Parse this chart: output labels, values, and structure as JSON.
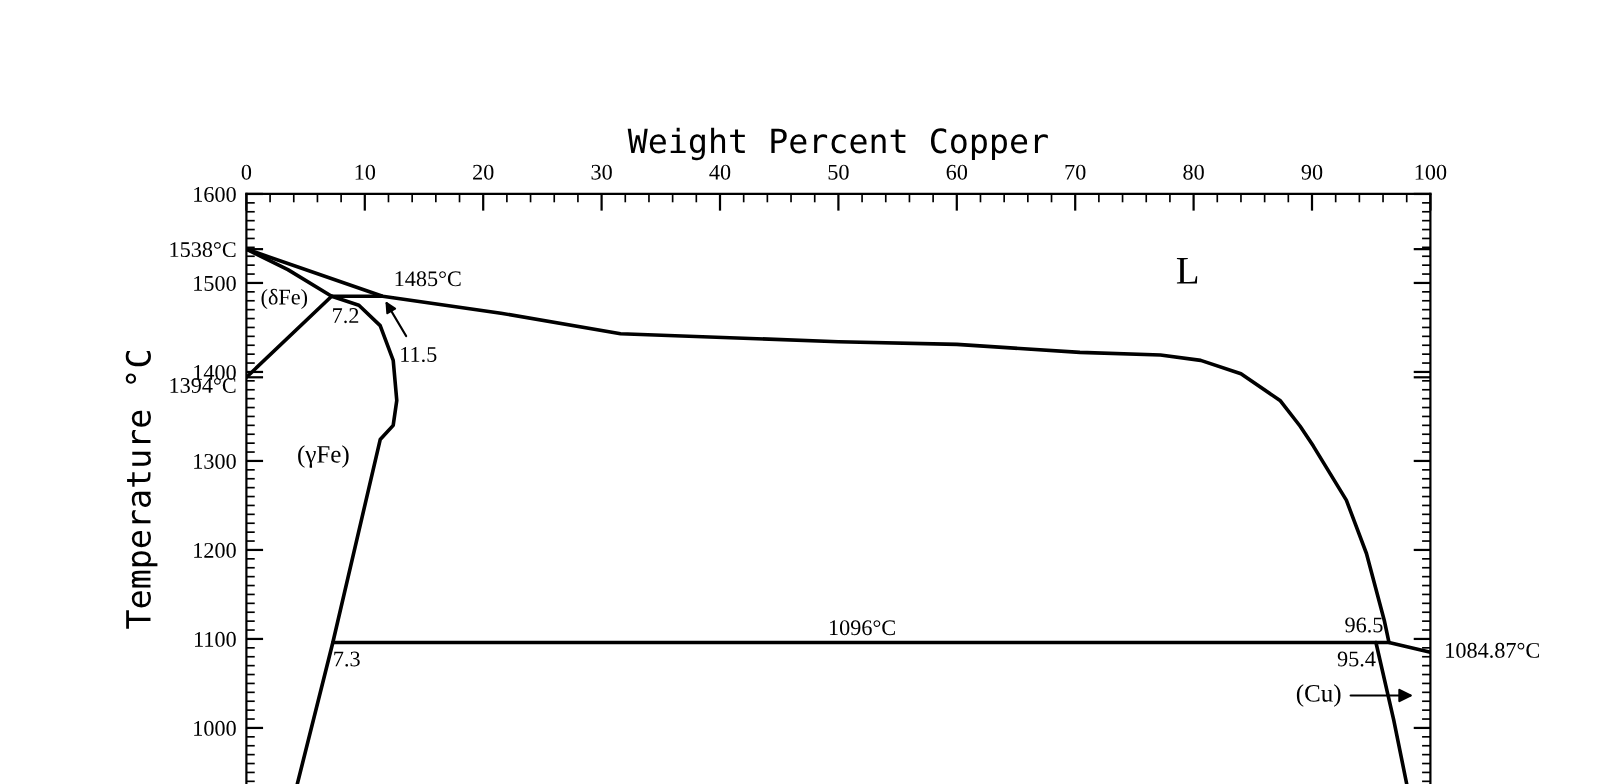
{
  "chart_data": {
    "type": "line",
    "xlabel": "Weight Percent Copper",
    "ylabel": "Temperature °C",
    "xlim": [
      0,
      100
    ],
    "xticks": [
      0,
      10,
      20,
      30,
      40,
      50,
      60,
      70,
      80,
      90,
      100
    ],
    "ylim": [
      937,
      1600
    ],
    "yticks": [
      1000,
      1100,
      1200,
      1300,
      {
        "value": 1394,
        "label": "1394°C"
      },
      1400,
      1500,
      {
        "value": 1538,
        "label": "1538°C"
      },
      1600
    ],
    "grid": false,
    "marker": "none",
    "line_style": "solid",
    "series": [
      {
        "color": "#000000",
        "x": [
          0,
          11.5,
          21.5,
          31.6,
          50,
          60,
          70.4,
          77.2,
          80.6,
          84,
          87.3,
          89,
          90.1,
          92.9,
          94.6,
          96.1,
          96.5
        ],
        "values": [
          1538,
          1485,
          1466,
          1443,
          1434,
          1431,
          1422,
          1419,
          1413,
          1398,
          1368,
          1339,
          1317,
          1256,
          1196,
          1121,
          1096
        ]
      },
      {
        "color": "#000000",
        "x": [
          0,
          3.5,
          7.2
        ],
        "values": [
          1538,
          1515,
          1485
        ]
      },
      {
        "color": "#000000",
        "x": [
          0,
          7.2,
          9.5,
          11.3,
          12.4,
          12.7,
          12.4,
          11.3,
          7.3,
          4.3
        ],
        "values": [
          1394,
          1485,
          1475,
          1452,
          1413,
          1368,
          1340,
          1324,
          1096,
          937
        ]
      },
      {
        "color": "#000000",
        "x": [
          7.2,
          11.5
        ],
        "values": [
          1485,
          1485
        ]
      },
      {
        "color": "#000000",
        "x": [
          7.3,
          96.5,
          100
        ],
        "values": [
          1096,
          1096,
          1085
        ]
      },
      {
        "color": "#000000",
        "x": [
          95.4,
          96.9,
          98.0
        ],
        "values": [
          1096,
          1009,
          937
        ]
      }
    ],
    "annotations": [
      "L",
      "(δFe)",
      "(γFe)",
      {
        "text": "1485°C",
        "x": 11.5,
        "y": 1485
      },
      {
        "text": "7.2",
        "x": 7.2,
        "y": 1485
      },
      {
        "text": "11.5",
        "x": 11.5,
        "y": 1485
      },
      {
        "text": "7.3",
        "x": 7.3,
        "y": 1096
      },
      {
        "text": "1096°C",
        "x": 52,
        "y": 1096
      },
      {
        "text": "96.5",
        "x": 96.5,
        "y": 1096
      },
      {
        "text": "95.4",
        "x": 95.4,
        "y": 1096
      },
      {
        "text": "1084.87°C",
        "x": 100,
        "y": 1085
      },
      "(Cu)"
    ]
  }
}
